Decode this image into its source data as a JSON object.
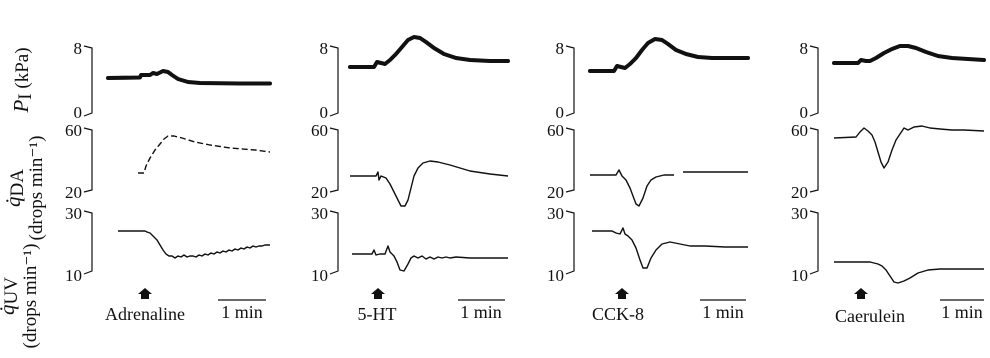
{
  "figure": {
    "y_labels": {
      "pressure": {
        "symbol": "P",
        "subscript": "I",
        "unit": " (kPa)"
      },
      "duct_flow": {
        "symbol": "q̇",
        "subscript": "DA",
        "unit": "(drops min⁻¹)"
      },
      "urine_flow": {
        "symbol": "q̇",
        "subscript": "UV",
        "unit": "(drops min⁻¹)"
      }
    },
    "ticks": {
      "pressure": [
        "8",
        "0"
      ],
      "duct_flow": [
        "60",
        "20"
      ],
      "urine_flow": [
        "30",
        "10"
      ]
    },
    "scale_bar_label": "1 min",
    "panels": [
      {
        "agent": "Adrenaline"
      },
      {
        "agent": "5-HT"
      },
      {
        "agent": "CCK-8"
      },
      {
        "agent": "Caerulein"
      }
    ]
  }
}
